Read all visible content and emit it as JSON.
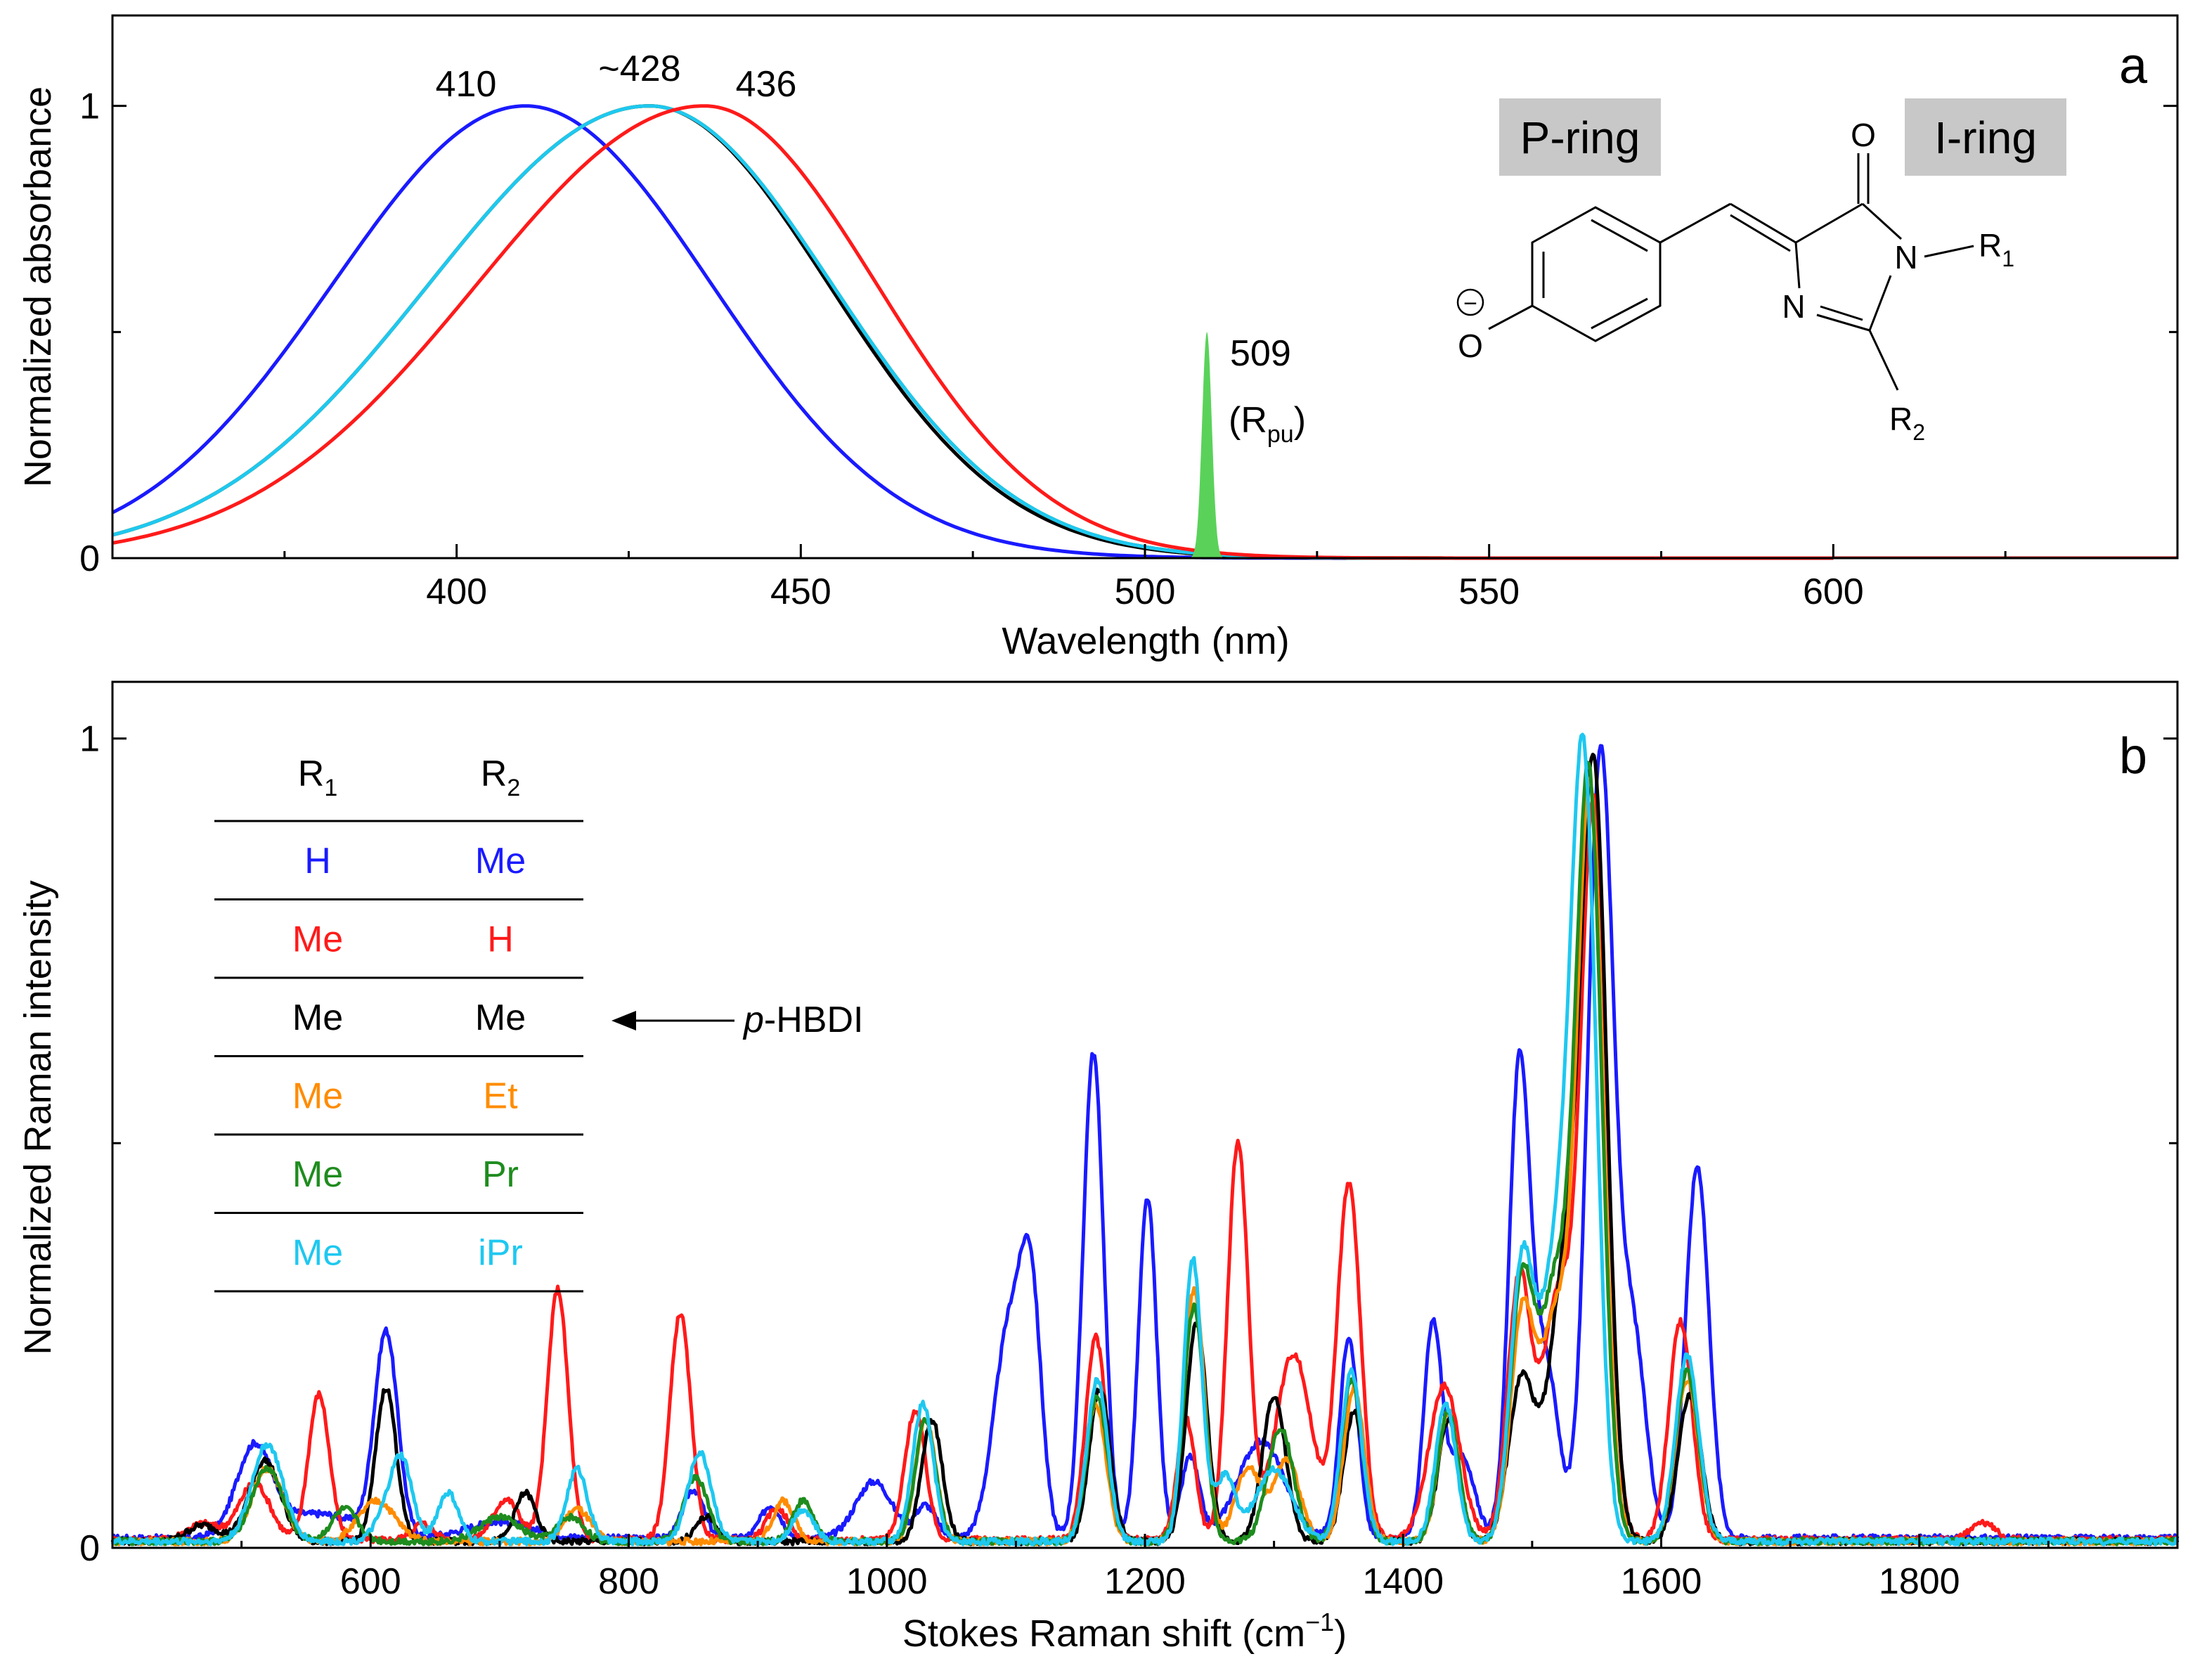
{
  "chart_data": [
    {
      "type": "line",
      "panel": "a",
      "xlabel": "Wavelength (nm)",
      "ylabel": "Normalized absorbance",
      "xlim": [
        350,
        650
      ],
      "ylim": [
        0,
        1.2
      ],
      "xticks": [
        "400",
        "450",
        "500",
        "550",
        "600"
      ],
      "yticks": [
        "0",
        "1"
      ],
      "grid": false,
      "series": [
        {
          "color": "#1a1aff",
          "peak": 410,
          "sigma_left": 28,
          "sigma_right": 27
        },
        {
          "color": "#000000",
          "peak": 428,
          "sigma_left": 32,
          "sigma_right": 26
        },
        {
          "color": "#ff8c00",
          "peak": 428,
          "sigma_left": 32,
          "sigma_right": 26.5
        },
        {
          "color": "#1e8c1e",
          "peak": 428,
          "sigma_left": 32,
          "sigma_right": 26.5
        },
        {
          "color": "#1ec8f0",
          "peak": 428,
          "sigma_left": 32,
          "sigma_right": 26.5
        },
        {
          "color": "#ff1a1a",
          "peak": 436,
          "sigma_left": 33,
          "sigma_right": 25
        }
      ],
      "pump": {
        "color": "#5ad25a",
        "center": 509,
        "height": 0.5,
        "width": 0.7
      },
      "peak_labels": [
        {
          "text": "410",
          "x": 410
        },
        {
          "text": "~428",
          "x": 428
        },
        {
          "text": "436",
          "x": 436
        }
      ],
      "pump_label": {
        "value": "509",
        "line2_open": "(R",
        "line2_sub": "pu",
        "line2_close": ")"
      },
      "panel_letter": "a",
      "molecule": {
        "p_ring_label": "P-ring",
        "i_ring_label": "I-ring",
        "o_minus": "O",
        "charge": "−",
        "o_carbonyl": "O",
        "n1": "N",
        "n3": "N",
        "r1": "R",
        "r1_sub": "1",
        "r2": "R",
        "r2_sub": "2"
      }
    },
    {
      "type": "line",
      "panel": "b",
      "xlabel": "Stokes Raman shift (cm",
      "xlabel_sup": "−1",
      "xlabel_close": ")",
      "ylabel": "Normalized Raman intensity",
      "xlim": [
        400,
        2000
      ],
      "ylim": [
        0,
        1.07
      ],
      "xticks": [
        "600",
        "800",
        "1000",
        "1200",
        "1400",
        "1600",
        "1800"
      ],
      "yticks": [
        "0",
        "1"
      ],
      "grid": false,
      "series": [
        {
          "color": "#1a1aff",
          "baseline": 0.012,
          "peaks": [
            [
              510,
              0.11,
              14
            ],
            [
              560,
              0.03,
              30
            ],
            [
              612,
              0.25,
              9
            ],
            [
              700,
              0.02,
              25
            ],
            [
              850,
              0.06,
              8
            ],
            [
              910,
              0.04,
              8
            ],
            [
              990,
              0.07,
              14
            ],
            [
              1030,
              0.04,
              8
            ],
            [
              1095,
              0.26,
              12
            ],
            [
              1112,
              0.26,
              8
            ],
            [
              1160,
              0.6,
              8
            ],
            [
              1202,
              0.42,
              7
            ],
            [
              1235,
              0.1,
              7
            ],
            [
              1290,
              0.12,
              18
            ],
            [
              1358,
              0.25,
              7
            ],
            [
              1423,
              0.26,
              7
            ],
            [
              1445,
              0.1,
              10
            ],
            [
              1490,
              0.57,
              8
            ],
            [
              1510,
              0.22,
              10
            ],
            [
              1553,
              0.97,
              10
            ],
            [
              1578,
              0.25,
              10
            ],
            [
              1628,
              0.46,
              9
            ]
          ]
        },
        {
          "color": "#ff1a1a",
          "baseline": 0.01,
          "peaks": [
            [
              470,
              0.02,
              12
            ],
            [
              510,
              0.07,
              12
            ],
            [
              560,
              0.18,
              8
            ],
            [
              640,
              0.02,
              8
            ],
            [
              705,
              0.05,
              10
            ],
            [
              745,
              0.31,
              8
            ],
            [
              840,
              0.28,
              8
            ],
            [
              915,
              0.04,
              8
            ],
            [
              1022,
              0.16,
              8
            ],
            [
              1162,
              0.25,
              8
            ],
            [
              1232,
              0.15,
              7
            ],
            [
              1272,
              0.49,
              8
            ],
            [
              1315,
              0.23,
              14
            ],
            [
              1358,
              0.44,
              9
            ],
            [
              1432,
              0.19,
              12
            ],
            [
              1490,
              0.32,
              9
            ],
            [
              1520,
              0.3,
              12
            ],
            [
              1548,
              0.9,
              10
            ],
            [
              1615,
              0.27,
              9
            ],
            [
              1850,
              0.02,
              10
            ]
          ]
        },
        {
          "color": "#000000",
          "baseline": 0.008,
          "peaks": [
            [
              470,
              0.02,
              12
            ],
            [
              518,
              0.1,
              12
            ],
            [
              612,
              0.19,
              8
            ],
            [
              720,
              0.06,
              8
            ],
            [
              860,
              0.03,
              8
            ],
            [
              1035,
              0.15,
              8
            ],
            [
              1165,
              0.19,
              8
            ],
            [
              1240,
              0.27,
              8
            ],
            [
              1300,
              0.18,
              9
            ],
            [
              1362,
              0.16,
              8
            ],
            [
              1435,
              0.15,
              8
            ],
            [
              1492,
              0.2,
              10
            ],
            [
              1525,
              0.32,
              12
            ],
            [
              1548,
              0.92,
              10
            ],
            [
              1622,
              0.18,
              9
            ]
          ]
        },
        {
          "color": "#ff8c00",
          "baseline": 0.008,
          "peaks": [
            [
              520,
              0.09,
              12
            ],
            [
              605,
              0.05,
              14
            ],
            [
              760,
              0.04,
              10
            ],
            [
              920,
              0.05,
              8
            ],
            [
              1030,
              0.15,
              8
            ],
            [
              1162,
              0.17,
              8
            ],
            [
              1238,
              0.31,
              8
            ],
            [
              1280,
              0.09,
              10
            ],
            [
              1310,
              0.1,
              10
            ],
            [
              1362,
              0.19,
              8
            ],
            [
              1435,
              0.16,
              8
            ],
            [
              1492,
              0.27,
              9
            ],
            [
              1518,
              0.27,
              12
            ],
            [
              1545,
              0.92,
              10
            ],
            [
              1620,
              0.2,
              9
            ]
          ]
        },
        {
          "color": "#1e8c1e",
          "baseline": 0.008,
          "peaks": [
            [
              520,
              0.09,
              12
            ],
            [
              580,
              0.04,
              10
            ],
            [
              700,
              0.03,
              15
            ],
            [
              755,
              0.03,
              10
            ],
            [
              852,
              0.08,
              9
            ],
            [
              935,
              0.05,
              8
            ],
            [
              1030,
              0.15,
              8
            ],
            [
              1163,
              0.18,
              8
            ],
            [
              1238,
              0.29,
              8
            ],
            [
              1305,
              0.14,
              10
            ],
            [
              1360,
              0.2,
              8
            ],
            [
              1435,
              0.16,
              8
            ],
            [
              1492,
              0.31,
              9
            ],
            [
              1518,
              0.31,
              12
            ],
            [
              1544,
              0.93,
              10
            ],
            [
              1620,
              0.21,
              9
            ]
          ]
        },
        {
          "color": "#1ec8f0",
          "baseline": 0.008,
          "peaks": [
            [
              520,
              0.12,
              12
            ],
            [
              615,
              0.04,
              10
            ],
            [
              625,
              0.08,
              8
            ],
            [
              660,
              0.06,
              8
            ],
            [
              760,
              0.09,
              8
            ],
            [
              855,
              0.11,
              9
            ],
            [
              935,
              0.04,
              8
            ],
            [
              1028,
              0.17,
              8
            ],
            [
              1163,
              0.2,
              8
            ],
            [
              1237,
              0.35,
              7
            ],
            [
              1262,
              0.08,
              8
            ],
            [
              1300,
              0.09,
              14
            ],
            [
              1360,
              0.21,
              8
            ],
            [
              1433,
              0.17,
              8
            ],
            [
              1492,
              0.33,
              9
            ],
            [
              1518,
              0.33,
              12
            ],
            [
              1540,
              0.93,
              10
            ],
            [
              1620,
              0.23,
              9
            ]
          ]
        }
      ],
      "panel_letter": "b",
      "legend": {
        "header_r1": "R",
        "header_r1_sub": "1",
        "header_r2": "R",
        "header_r2_sub": "2",
        "rows": [
          {
            "r1": "H",
            "r2": "Me",
            "color": "#1a1aff"
          },
          {
            "r1": "Me",
            "r2": "H",
            "color": "#ff1a1a"
          },
          {
            "r1": "Me",
            "r2": "Me",
            "color": "#000000"
          },
          {
            "r1": "Me",
            "r2": "Et",
            "color": "#ff8c00"
          },
          {
            "r1": "Me",
            "r2": "Pr",
            "color": "#1e8c1e"
          },
          {
            "r1": "Me",
            "r2": "iPr",
            "color": "#1ec8f0"
          }
        ]
      },
      "arrow_label_italic": "p",
      "arrow_label_rest": "-HBDI"
    }
  ]
}
